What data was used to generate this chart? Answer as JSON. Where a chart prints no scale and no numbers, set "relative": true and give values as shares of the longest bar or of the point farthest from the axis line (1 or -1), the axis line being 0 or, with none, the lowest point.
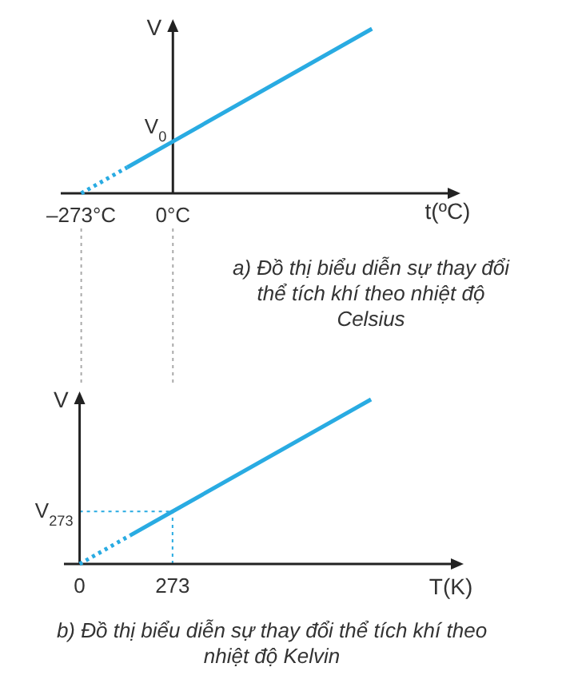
{
  "chart_data": [
    {
      "type": "line",
      "title": "a) Đồ thị biểu diễn sự thay đổi thể tích khí theo nhiệt độ Celsius",
      "xlabel": "t(ºC)",
      "ylabel": "V",
      "relative": true,
      "xlim": [
        -334,
        828
      ],
      "xticks": [
        {
          "value": -273,
          "label": "–273°C"
        },
        {
          "value": 0,
          "label": "0°C"
        }
      ],
      "series": [
        {
          "color": "#29abe2",
          "line_style": "dotted",
          "x": [
            -273,
            -136
          ],
          "values": [
            0,
            0.158
          ]
        },
        {
          "color": "#29abe2",
          "line_style": "solid",
          "x": [
            -136,
            0,
            593
          ],
          "values": [
            0.158,
            0.315,
            1
          ]
        }
      ],
      "annotations": [
        {
          "text": "V$_{0}$",
          "x": 0,
          "y": 0.315
        }
      ]
    },
    {
      "type": "line",
      "title": "b) Đồ thị biểu diễn sự thay đổi thể tích khí theo nhiệt độ Kelvin",
      "xlabel": "T(K)",
      "ylabel": "V",
      "relative": true,
      "xlim": [
        -46,
        1100
      ],
      "xticks": [
        0,
        273
      ],
      "series": [
        {
          "color": "#29abe2",
          "line_style": "dotted",
          "x": [
            0,
            148
          ],
          "values": [
            0,
            0.173
          ]
        },
        {
          "color": "#29abe2",
          "line_style": "solid",
          "x": [
            148,
            273,
            856
          ],
          "values": [
            0.173,
            0.319,
            1
          ]
        }
      ],
      "ref_lines": [
        {
          "axis": "x",
          "value": 273,
          "color": "#29abe2",
          "line_style": "dotted"
        },
        {
          "axis": "y",
          "value": 0.319,
          "color": "#29abe2",
          "line_style": "dotted",
          "label": "V$_{273}$"
        }
      ]
    }
  ]
}
